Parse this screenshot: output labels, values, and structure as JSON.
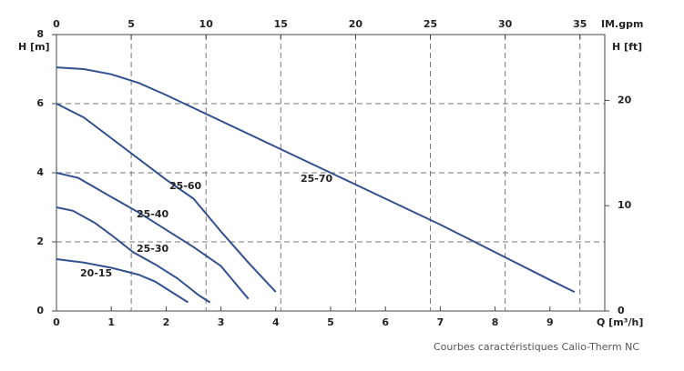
{
  "chart_data": {
    "type": "line",
    "xlabel": "Q [m³/h]",
    "ylabel": "H [m]",
    "x2label": "IM.gpm",
    "y2label": "H [ft]",
    "caption": "Courbes caractéristiques Calio-Therm NC",
    "xlim": [
      0,
      10
    ],
    "xticks": [
      0,
      1,
      2,
      3,
      4,
      5,
      6,
      7,
      8,
      9
    ],
    "x2lim": [
      0,
      36.66
    ],
    "x2ticks": [
      0,
      5,
      10,
      15,
      20,
      25,
      30,
      35
    ],
    "ylim": [
      0,
      8
    ],
    "yticks": [
      0,
      2,
      4,
      6,
      8
    ],
    "y2lim": [
      0,
      26.25
    ],
    "y2ticks": [
      0,
      10,
      20
    ],
    "grid": true,
    "series": [
      {
        "name": "25-70",
        "color": "#33508f",
        "x": [
          0,
          0.5,
          1,
          1.5,
          2,
          3,
          4,
          5,
          6,
          7,
          8,
          9,
          9.45
        ],
        "values": [
          7.05,
          7.0,
          6.85,
          6.6,
          6.25,
          5.5,
          4.75,
          4.0,
          3.25,
          2.5,
          1.7,
          0.9,
          0.55
        ]
      },
      {
        "name": "25-60",
        "color": "#33508f",
        "x": [
          0,
          0.5,
          1,
          1.5,
          2,
          2.5,
          3,
          3.5,
          4
        ],
        "values": [
          6.0,
          5.6,
          5.0,
          4.4,
          3.8,
          3.25,
          2.3,
          1.4,
          0.55
        ]
      },
      {
        "name": "25-40",
        "color": "#33508f",
        "x": [
          0,
          0.4,
          1,
          1.5,
          2,
          2.5,
          3,
          3.5
        ],
        "values": [
          4.0,
          3.85,
          3.3,
          2.85,
          2.35,
          1.85,
          1.3,
          0.35
        ]
      },
      {
        "name": "25-30",
        "color": "#33508f",
        "x": [
          0,
          0.3,
          0.7,
          1,
          1.4,
          1.8,
          2.2,
          2.6,
          2.8
        ],
        "values": [
          3.0,
          2.9,
          2.55,
          2.2,
          1.7,
          1.35,
          0.95,
          0.45,
          0.25
        ]
      },
      {
        "name": "20-15",
        "color": "#33508f",
        "x": [
          0,
          0.5,
          1,
          1.5,
          1.8,
          2.1,
          2.4
        ],
        "values": [
          1.5,
          1.4,
          1.25,
          1.05,
          0.85,
          0.55,
          0.25
        ]
      }
    ]
  }
}
